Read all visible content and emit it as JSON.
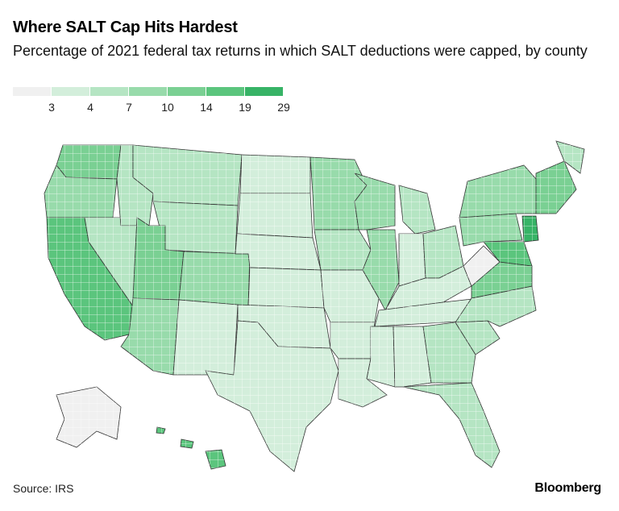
{
  "title": "Where SALT Cap Hits Hardest",
  "subtitle": "Percentage of 2021 federal tax returns in which SALT deductions were capped, by county",
  "legend": {
    "colors": [
      "#f0f0f0",
      "#d3eedb",
      "#b5e5c3",
      "#98dbab",
      "#7ad093",
      "#5bc57d",
      "#37b366"
    ],
    "labels": [
      "3",
      "4",
      "7",
      "10",
      "14",
      "19",
      "29"
    ]
  },
  "footer": {
    "source": "Source: IRS",
    "brand": "Bloomberg"
  },
  "map": {
    "type": "choropleth",
    "geography": "US counties",
    "stroke_color": "#ffffff",
    "state_border_color": "#333333",
    "regions": [
      {
        "name": "washington",
        "class": 4
      },
      {
        "name": "oregon",
        "class": 3
      },
      {
        "name": "california",
        "class": 5
      },
      {
        "name": "nevada",
        "class": 2
      },
      {
        "name": "idaho",
        "class": 2
      },
      {
        "name": "montana",
        "class": 2
      },
      {
        "name": "wyoming",
        "class": 2
      },
      {
        "name": "utah",
        "class": 4
      },
      {
        "name": "colorado",
        "class": 3
      },
      {
        "name": "arizona",
        "class": 3
      },
      {
        "name": "new-mexico",
        "class": 1
      },
      {
        "name": "north-dakota",
        "class": 1
      },
      {
        "name": "south-dakota",
        "class": 1
      },
      {
        "name": "nebraska",
        "class": 1
      },
      {
        "name": "kansas",
        "class": 1
      },
      {
        "name": "oklahoma",
        "class": 1
      },
      {
        "name": "texas",
        "class": 1
      },
      {
        "name": "minnesota",
        "class": 3
      },
      {
        "name": "iowa",
        "class": 2
      },
      {
        "name": "missouri",
        "class": 1
      },
      {
        "name": "arkansas",
        "class": 1
      },
      {
        "name": "louisiana",
        "class": 1
      },
      {
        "name": "wisconsin",
        "class": 3
      },
      {
        "name": "illinois",
        "class": 3
      },
      {
        "name": "michigan",
        "class": 2
      },
      {
        "name": "indiana",
        "class": 1
      },
      {
        "name": "ohio",
        "class": 2
      },
      {
        "name": "kentucky",
        "class": 1
      },
      {
        "name": "tennessee",
        "class": 1
      },
      {
        "name": "mississippi",
        "class": 1
      },
      {
        "name": "alabama",
        "class": 1
      },
      {
        "name": "georgia",
        "class": 2
      },
      {
        "name": "florida",
        "class": 2
      },
      {
        "name": "south-carolina",
        "class": 2
      },
      {
        "name": "north-carolina",
        "class": 2
      },
      {
        "name": "virginia",
        "class": 4
      },
      {
        "name": "west-virginia",
        "class": 0
      },
      {
        "name": "maryland",
        "class": 5
      },
      {
        "name": "pennsylvania",
        "class": 3
      },
      {
        "name": "new-york",
        "class": 3
      },
      {
        "name": "new-jersey",
        "class": 6
      },
      {
        "name": "new-england",
        "class": 4
      },
      {
        "name": "maine",
        "class": 2
      },
      {
        "name": "alaska",
        "class": 0
      },
      {
        "name": "hawaii",
        "class": 5
      }
    ]
  }
}
